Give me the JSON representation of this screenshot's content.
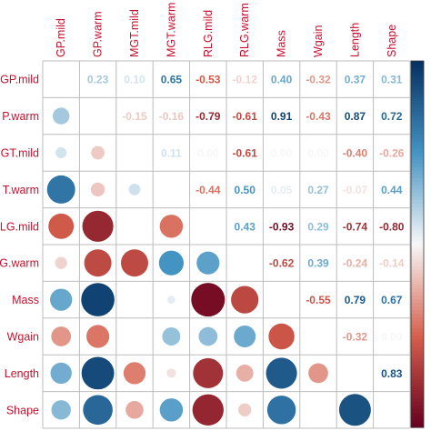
{
  "chart_data": {
    "type": "heatmap",
    "title": "",
    "variables": [
      "GP.mild",
      "GP.warm",
      "MGT.mild",
      "MGT.warm",
      "RLG.mild",
      "RLG.warm",
      "Mass",
      "Wgain",
      "Length",
      "Shape"
    ],
    "row_labels": [
      "GP.mild",
      "P.warm",
      "GT.mild",
      "T.warm",
      "LG.mild",
      "G.warm",
      "Mass",
      "Wgain",
      "Length",
      "Shape"
    ],
    "column_labels": [
      "GP.mild",
      "GP.warm",
      "MGT.mild",
      "MGT.warm",
      "RLG.mild",
      "RLG.warm",
      "Mass",
      "Wgain",
      "Length",
      "Shape"
    ],
    "matrix": [
      [
        null,
        0.23,
        0.1,
        0.65,
        -0.53,
        -0.12,
        0.4,
        -0.32,
        0.37,
        0.31
      ],
      [
        0.23,
        null,
        -0.15,
        -0.16,
        -0.79,
        -0.61,
        0.91,
        -0.43,
        0.87,
        0.72
      ],
      [
        0.1,
        -0.15,
        null,
        0.11,
        0.0,
        -0.61,
        0.0,
        0.0,
        -0.4,
        -0.26
      ],
      [
        0.65,
        -0.16,
        0.11,
        null,
        -0.44,
        0.5,
        0.05,
        0.27,
        -0.07,
        0.44
      ],
      [
        -0.53,
        -0.79,
        0.0,
        -0.44,
        null,
        0.43,
        -0.93,
        0.29,
        -0.74,
        -0.8
      ],
      [
        -0.12,
        -0.61,
        -0.61,
        0.5,
        0.43,
        null,
        -0.62,
        0.39,
        -0.24,
        -0.14
      ],
      [
        0.4,
        0.91,
        0.0,
        0.05,
        -0.93,
        -0.62,
        null,
        -0.55,
        0.79,
        0.67
      ],
      [
        -0.32,
        -0.43,
        0.0,
        0.27,
        0.29,
        0.39,
        -0.55,
        null,
        -0.32,
        0.0
      ],
      [
        0.37,
        0.87,
        -0.4,
        -0.07,
        -0.74,
        -0.24,
        0.79,
        -0.32,
        null,
        0.83
      ],
      [
        0.31,
        0.72,
        -0.26,
        0.44,
        -0.8,
        -0.14,
        0.67,
        0.0,
        0.83,
        null
      ]
    ],
    "lower_triangle": "circle",
    "upper_triangle": "number",
    "color_scale": {
      "min": -1,
      "max": 1,
      "negative_color": "#67001F",
      "mid_negative_color": "#D6604D",
      "neutral_color": "#F7F7F7",
      "mid_positive_color": "#4393C3",
      "positive_color": "#053061"
    },
    "label_color": "#C8102E",
    "grid": true,
    "legend": "right colorbar"
  }
}
